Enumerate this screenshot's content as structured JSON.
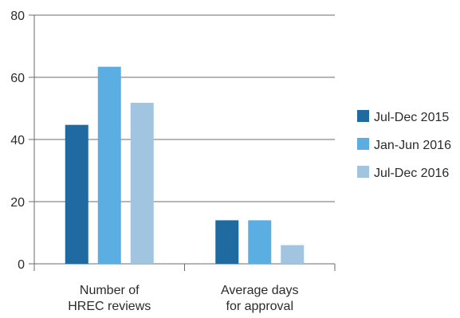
{
  "chart_data": {
    "type": "bar",
    "categories": [
      [
        "Number of",
        "HREC reviews"
      ],
      [
        "Average days",
        "for approval"
      ]
    ],
    "series": [
      {
        "name": "Jul-Dec 2015",
        "color": "#1f6aa1",
        "values": [
          44.7,
          14
        ]
      },
      {
        "name": "Jan-Jun 2016",
        "color": "#5aaee2",
        "values": [
          63.4,
          14
        ]
      },
      {
        "name": "Jul-Dec 2016",
        "color": "#a1c4e1",
        "values": [
          51.8,
          6
        ]
      }
    ],
    "ylim": [
      0,
      80
    ],
    "yticks": [
      0,
      20,
      40,
      60,
      80
    ],
    "grid": true,
    "legend_position": "right",
    "title": "",
    "xlabel": "",
    "ylabel": ""
  }
}
